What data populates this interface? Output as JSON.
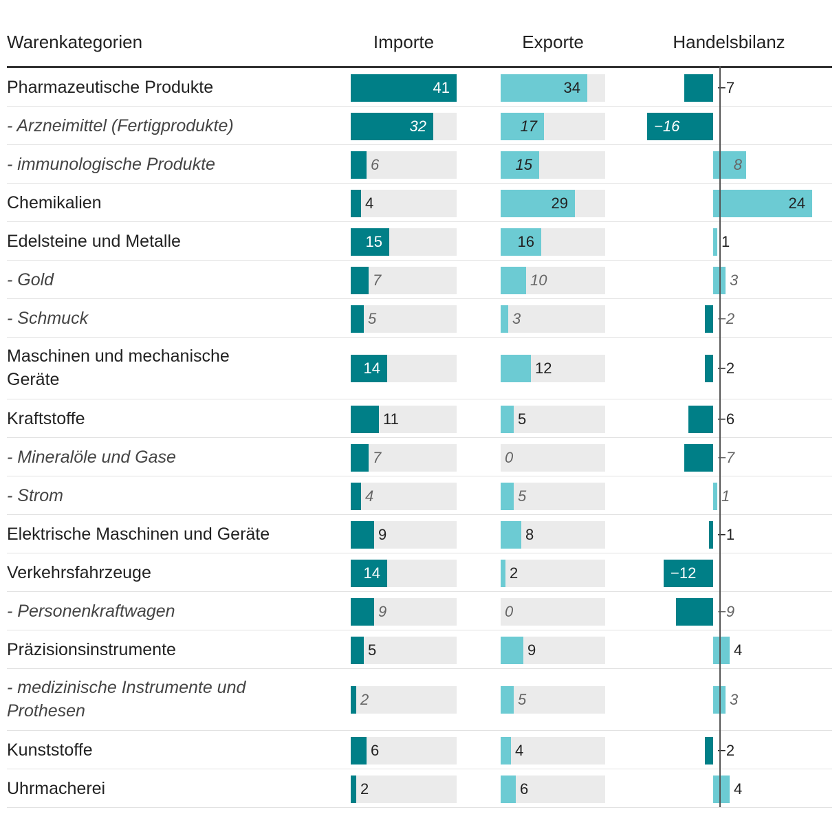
{
  "headers": {
    "category": "Warenkategorien",
    "imports": "Importe",
    "exports": "Exporte",
    "balance": "Handelsbilanz"
  },
  "colors": {
    "imports": "#007f87",
    "exports": "#6ccbd3",
    "track": "#ebebeb",
    "text_dark": "#222222",
    "text_light": "#ffffff",
    "sub_text": "#666666"
  },
  "chart_data": {
    "type": "table",
    "scale_max": 41,
    "columns": [
      "Warenkategorien",
      "Importe",
      "Exporte",
      "Handelsbilanz"
    ],
    "rows": [
      {
        "category": "Pharmazeutische Produkte",
        "sub": false,
        "imports": 41,
        "exports": 34,
        "balance": -7,
        "imports_label": "41",
        "exports_label": "34",
        "balance_label": "−7"
      },
      {
        "category": "- Arzneimittel (Fertigprodukte)",
        "sub": true,
        "imports": 32,
        "exports": 17,
        "balance": -16,
        "imports_label": "32",
        "exports_label": "17",
        "balance_label": "−16"
      },
      {
        "category": "- immunologische Produkte",
        "sub": true,
        "imports": 6,
        "exports": 15,
        "balance": 8,
        "imports_label": "6",
        "exports_label": "15",
        "balance_label": "8"
      },
      {
        "category": "Chemikalien",
        "sub": false,
        "imports": 4,
        "exports": 29,
        "balance": 24,
        "imports_label": "4",
        "exports_label": "29",
        "balance_label": "24"
      },
      {
        "category": "Edelsteine und Metalle",
        "sub": false,
        "imports": 15,
        "exports": 16,
        "balance": 1,
        "imports_label": "15",
        "exports_label": "16",
        "balance_label": "1"
      },
      {
        "category": "- Gold",
        "sub": true,
        "imports": 7,
        "exports": 10,
        "balance": 3,
        "imports_label": "7",
        "exports_label": "10",
        "balance_label": "3"
      },
      {
        "category": "- Schmuck",
        "sub": true,
        "imports": 5,
        "exports": 3,
        "balance": -2,
        "imports_label": "5",
        "exports_label": "3",
        "balance_label": "−2"
      },
      {
        "category": "Maschinen und mechanische Geräte",
        "sub": false,
        "imports": 14,
        "exports": 12,
        "balance": -2,
        "imports_label": "14",
        "exports_label": "12",
        "balance_label": "−2"
      },
      {
        "category": "Kraftstoffe",
        "sub": false,
        "imports": 11,
        "exports": 5,
        "balance": -6,
        "imports_label": "11",
        "exports_label": "5",
        "balance_label": "−6"
      },
      {
        "category": "- Mineralöle und Gase",
        "sub": true,
        "imports": 7,
        "exports": 0,
        "balance": -7,
        "imports_label": "7",
        "exports_label": "0",
        "balance_label": "−7"
      },
      {
        "category": "- Strom",
        "sub": true,
        "imports": 4,
        "exports": 5,
        "balance": 1,
        "imports_label": "4",
        "exports_label": "5",
        "balance_label": "1"
      },
      {
        "category": "Elektrische Maschinen und Geräte",
        "sub": false,
        "imports": 9,
        "exports": 8,
        "balance": -1,
        "imports_label": "9",
        "exports_label": "8",
        "balance_label": "−1"
      },
      {
        "category": "Verkehrsfahrzeuge",
        "sub": false,
        "imports": 14,
        "exports": 2,
        "balance": -12,
        "imports_label": "14",
        "exports_label": "2",
        "balance_label": "−12"
      },
      {
        "category": "- Personenkraftwagen",
        "sub": true,
        "imports": 9,
        "exports": 0,
        "balance": -9,
        "imports_label": "9",
        "exports_label": "0",
        "balance_label": "−9"
      },
      {
        "category": "Präzisionsinstrumente",
        "sub": false,
        "imports": 5,
        "exports": 9,
        "balance": 4,
        "imports_label": "5",
        "exports_label": "9",
        "balance_label": "4"
      },
      {
        "category": "- medizinische Instrumente und Prothesen",
        "sub": true,
        "imports": 2,
        "exports": 5,
        "balance": 3,
        "imports_label": "2",
        "exports_label": "5",
        "balance_label": "3"
      },
      {
        "category": "Kunststoffe",
        "sub": false,
        "imports": 6,
        "exports": 4,
        "balance": -2,
        "imports_label": "6",
        "exports_label": "4",
        "balance_label": "−2"
      },
      {
        "category": "Uhrmacherei",
        "sub": false,
        "imports": 2,
        "exports": 6,
        "balance": 4,
        "imports_label": "2",
        "exports_label": "6",
        "balance_label": "4"
      }
    ]
  }
}
